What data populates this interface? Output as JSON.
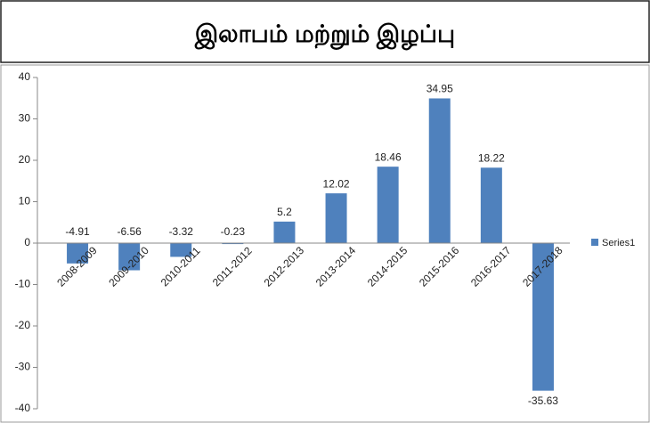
{
  "chart_data": {
    "type": "bar",
    "title": "இலாபம் மற்றும் இழப்பு",
    "categories": [
      "2008-2009",
      "2009-2010",
      "2010-2011",
      "2011-2012",
      "2012-2013",
      "2013-2014",
      "2014-2015",
      "2015-2016",
      "2016-2017",
      "2017-2018"
    ],
    "series": [
      {
        "name": "Series1",
        "color": "#4f81bd",
        "values": [
          -4.91,
          -6.56,
          -3.32,
          -0.23,
          5.2,
          12.02,
          18.46,
          34.95,
          18.22,
          -35.63
        ]
      }
    ],
    "ylim": [
      -40,
      40
    ],
    "yticks": [
      40,
      30,
      20,
      10,
      0,
      -10,
      -20,
      -30,
      -40
    ],
    "grid": false,
    "legend": "right"
  }
}
